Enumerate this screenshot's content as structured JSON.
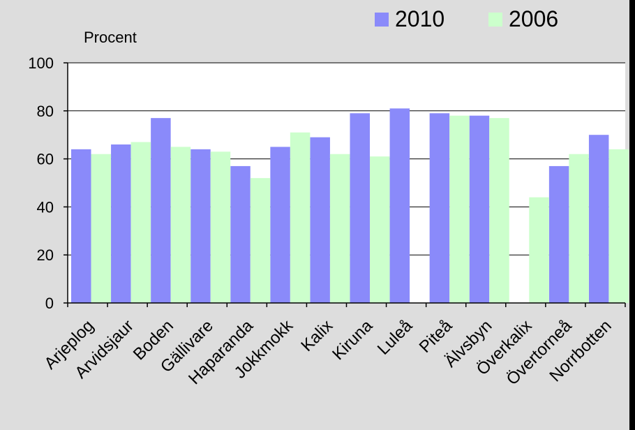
{
  "chart_data": {
    "type": "bar",
    "ylabel": "Procent",
    "ylim": [
      0,
      100
    ],
    "yticks": [
      0,
      20,
      40,
      60,
      80,
      100
    ],
    "grid": true,
    "legend_position": "top-right",
    "categories": [
      "Arjeplog",
      "Arvidsjaur",
      "Boden",
      "Gällivare",
      "Haparanda",
      "Jokkmokk",
      "Kalix",
      "Kiruna",
      "Luleå",
      "Piteå",
      "Älvsbyn",
      "Överkalix",
      "Övertorneå",
      "Norrbotten"
    ],
    "series": [
      {
        "name": "2010",
        "color": "#8a8afa",
        "values": [
          64,
          66,
          77,
          64,
          57,
          65,
          69,
          79,
          81,
          79,
          78,
          null,
          57,
          70
        ]
      },
      {
        "name": "2006",
        "color": "#ccffcc",
        "values": [
          62,
          67,
          65,
          63,
          52,
          71,
          62,
          61,
          null,
          78,
          77,
          44,
          62,
          64
        ]
      }
    ]
  }
}
